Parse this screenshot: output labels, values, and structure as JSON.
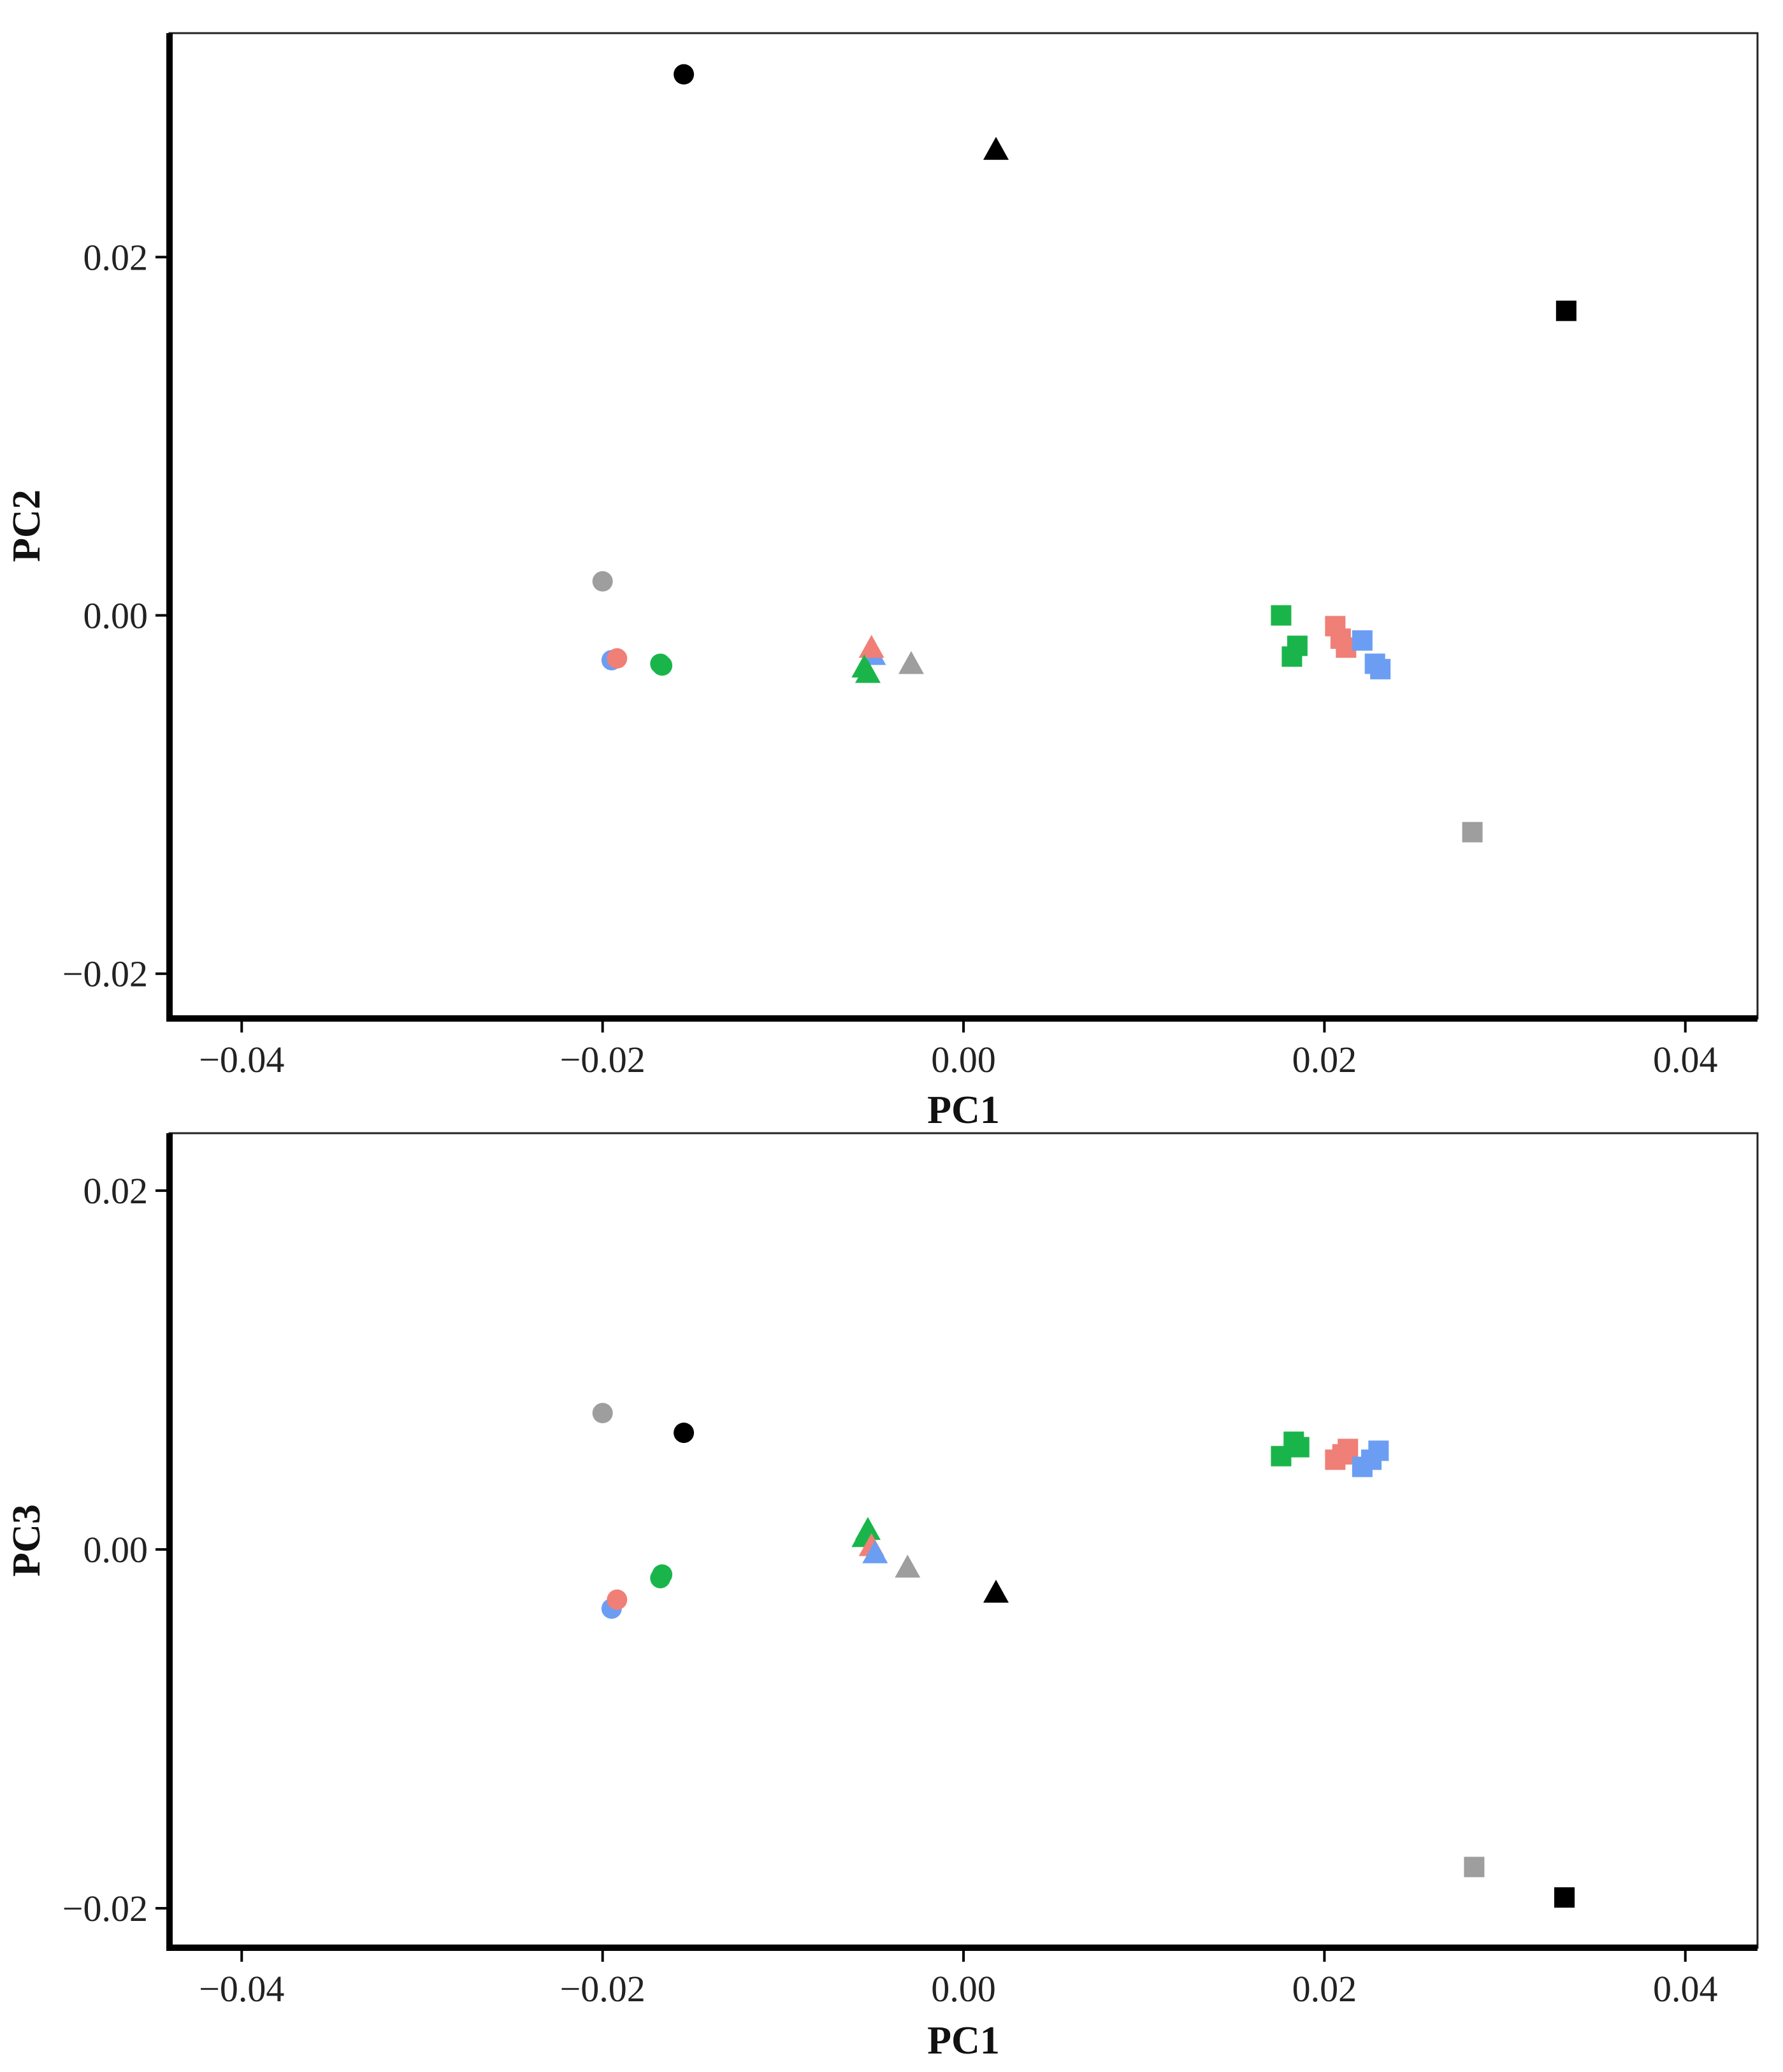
{
  "colors": {
    "black": "#000000",
    "gray": "#9e9e9e",
    "red": "#f07f77",
    "green": "#1ab54a",
    "blue": "#6b9ef3"
  },
  "chart_data": [
    {
      "type": "scatter",
      "title": "",
      "xlabel": "PC1",
      "ylabel": "PC2",
      "xlim": [
        -0.044,
        0.044
      ],
      "ylim": [
        -0.0225,
        0.0325
      ],
      "xticks": [
        -0.04,
        -0.02,
        0.0,
        0.02,
        0.04
      ],
      "xtick_labels": [
        "−0.04",
        "−0.02",
        "0.00",
        "0.02",
        "0.04"
      ],
      "yticks": [
        -0.02,
        0.0,
        0.02
      ],
      "ytick_labels": [
        "−0.02",
        "0.00",
        "0.02"
      ],
      "grid": false,
      "legend": "none",
      "points": [
        {
          "x": -0.0155,
          "y": 0.0302,
          "shape": "circle",
          "color": "black"
        },
        {
          "x": 0.0018,
          "y": 0.026,
          "shape": "triangle",
          "color": "black"
        },
        {
          "x": 0.0334,
          "y": 0.017,
          "shape": "square",
          "color": "black"
        },
        {
          "x": -0.02,
          "y": 0.0019,
          "shape": "circle",
          "color": "gray"
        },
        {
          "x": -0.0195,
          "y": -0.0025,
          "shape": "circle",
          "color": "blue"
        },
        {
          "x": -0.0192,
          "y": -0.0024,
          "shape": "circle",
          "color": "red"
        },
        {
          "x": -0.0168,
          "y": -0.0027,
          "shape": "circle",
          "color": "green"
        },
        {
          "x": -0.0167,
          "y": -0.0028,
          "shape": "circle",
          "color": "green"
        },
        {
          "x": -0.005,
          "y": -0.0022,
          "shape": "triangle",
          "color": "blue"
        },
        {
          "x": -0.0051,
          "y": -0.0018,
          "shape": "triangle",
          "color": "red"
        },
        {
          "x": -0.0055,
          "y": -0.0029,
          "shape": "triangle",
          "color": "green"
        },
        {
          "x": -0.0053,
          "y": -0.0032,
          "shape": "triangle",
          "color": "green"
        },
        {
          "x": -0.0029,
          "y": -0.0027,
          "shape": "triangle",
          "color": "gray"
        },
        {
          "x": 0.0176,
          "y": 0.0,
          "shape": "square",
          "color": "green"
        },
        {
          "x": 0.0185,
          "y": -0.0017,
          "shape": "square",
          "color": "green"
        },
        {
          "x": 0.0182,
          "y": -0.0023,
          "shape": "square",
          "color": "green"
        },
        {
          "x": 0.0206,
          "y": -0.0006,
          "shape": "square",
          "color": "red"
        },
        {
          "x": 0.0209,
          "y": -0.0013,
          "shape": "square",
          "color": "red"
        },
        {
          "x": 0.0212,
          "y": -0.0018,
          "shape": "square",
          "color": "red"
        },
        {
          "x": 0.0221,
          "y": -0.0014,
          "shape": "square",
          "color": "blue"
        },
        {
          "x": 0.0228,
          "y": -0.0027,
          "shape": "square",
          "color": "blue"
        },
        {
          "x": 0.0231,
          "y": -0.003,
          "shape": "square",
          "color": "blue"
        },
        {
          "x": 0.0282,
          "y": -0.0121,
          "shape": "square",
          "color": "gray"
        }
      ]
    },
    {
      "type": "scatter",
      "title": "",
      "xlabel": "PC1",
      "ylabel": "PC3",
      "xlim": [
        -0.044,
        0.044
      ],
      "ylim": [
        -0.0222,
        0.0232
      ],
      "xticks": [
        -0.04,
        -0.02,
        0.0,
        0.02,
        0.04
      ],
      "xtick_labels": [
        "−0.04",
        "−0.02",
        "0.00",
        "0.02",
        "0.04"
      ],
      "yticks": [
        -0.02,
        0.0,
        0.02
      ],
      "ytick_labels": [
        "−0.02",
        "0.00",
        "0.02"
      ],
      "grid": false,
      "legend": "none",
      "points": [
        {
          "x": -0.02,
          "y": 0.0076,
          "shape": "circle",
          "color": "gray"
        },
        {
          "x": -0.0155,
          "y": 0.0065,
          "shape": "circle",
          "color": "black"
        },
        {
          "x": -0.0195,
          "y": -0.0033,
          "shape": "circle",
          "color": "blue"
        },
        {
          "x": -0.0192,
          "y": -0.0028,
          "shape": "circle",
          "color": "red"
        },
        {
          "x": -0.0168,
          "y": -0.0016,
          "shape": "circle",
          "color": "green"
        },
        {
          "x": -0.0167,
          "y": -0.0014,
          "shape": "circle",
          "color": "green"
        },
        {
          "x": -0.0053,
          "y": 0.0011,
          "shape": "triangle",
          "color": "green"
        },
        {
          "x": -0.0055,
          "y": 0.0007,
          "shape": "triangle",
          "color": "green"
        },
        {
          "x": -0.0051,
          "y": 0.0002,
          "shape": "triangle",
          "color": "red"
        },
        {
          "x": -0.0049,
          "y": -0.0002,
          "shape": "triangle",
          "color": "blue"
        },
        {
          "x": -0.0031,
          "y": -0.001,
          "shape": "triangle",
          "color": "gray"
        },
        {
          "x": 0.0018,
          "y": -0.0024,
          "shape": "triangle",
          "color": "black"
        },
        {
          "x": 0.0176,
          "y": 0.0052,
          "shape": "square",
          "color": "green"
        },
        {
          "x": 0.0183,
          "y": 0.006,
          "shape": "square",
          "color": "green"
        },
        {
          "x": 0.0186,
          "y": 0.0057,
          "shape": "square",
          "color": "green"
        },
        {
          "x": 0.0206,
          "y": 0.005,
          "shape": "square",
          "color": "red"
        },
        {
          "x": 0.021,
          "y": 0.0053,
          "shape": "square",
          "color": "red"
        },
        {
          "x": 0.0213,
          "y": 0.0056,
          "shape": "square",
          "color": "red"
        },
        {
          "x": 0.0221,
          "y": 0.0046,
          "shape": "square",
          "color": "blue"
        },
        {
          "x": 0.0226,
          "y": 0.005,
          "shape": "square",
          "color": "blue"
        },
        {
          "x": 0.023,
          "y": 0.0055,
          "shape": "square",
          "color": "blue"
        },
        {
          "x": 0.0283,
          "y": -0.0177,
          "shape": "square",
          "color": "gray"
        },
        {
          "x": 0.0333,
          "y": -0.0194,
          "shape": "square",
          "color": "black"
        }
      ]
    }
  ]
}
